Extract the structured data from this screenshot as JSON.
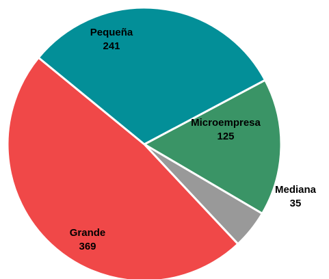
{
  "chart_data": {
    "type": "pie",
    "title": "",
    "slices": [
      {
        "label": "Microempresa",
        "value": 125,
        "color": "#3a9466"
      },
      {
        "label": "Mediana",
        "value": 35,
        "color": "#999999"
      },
      {
        "label": "Grande",
        "value": 369,
        "color": "#f04848"
      },
      {
        "label": "Pequeña",
        "value": 241,
        "color": "#038f98"
      }
    ],
    "start_angle_deg": -28,
    "direction": "clockwise",
    "slice_border_color": "#ffffff",
    "legend": "none",
    "data_labels": "category and value, inside slices"
  }
}
